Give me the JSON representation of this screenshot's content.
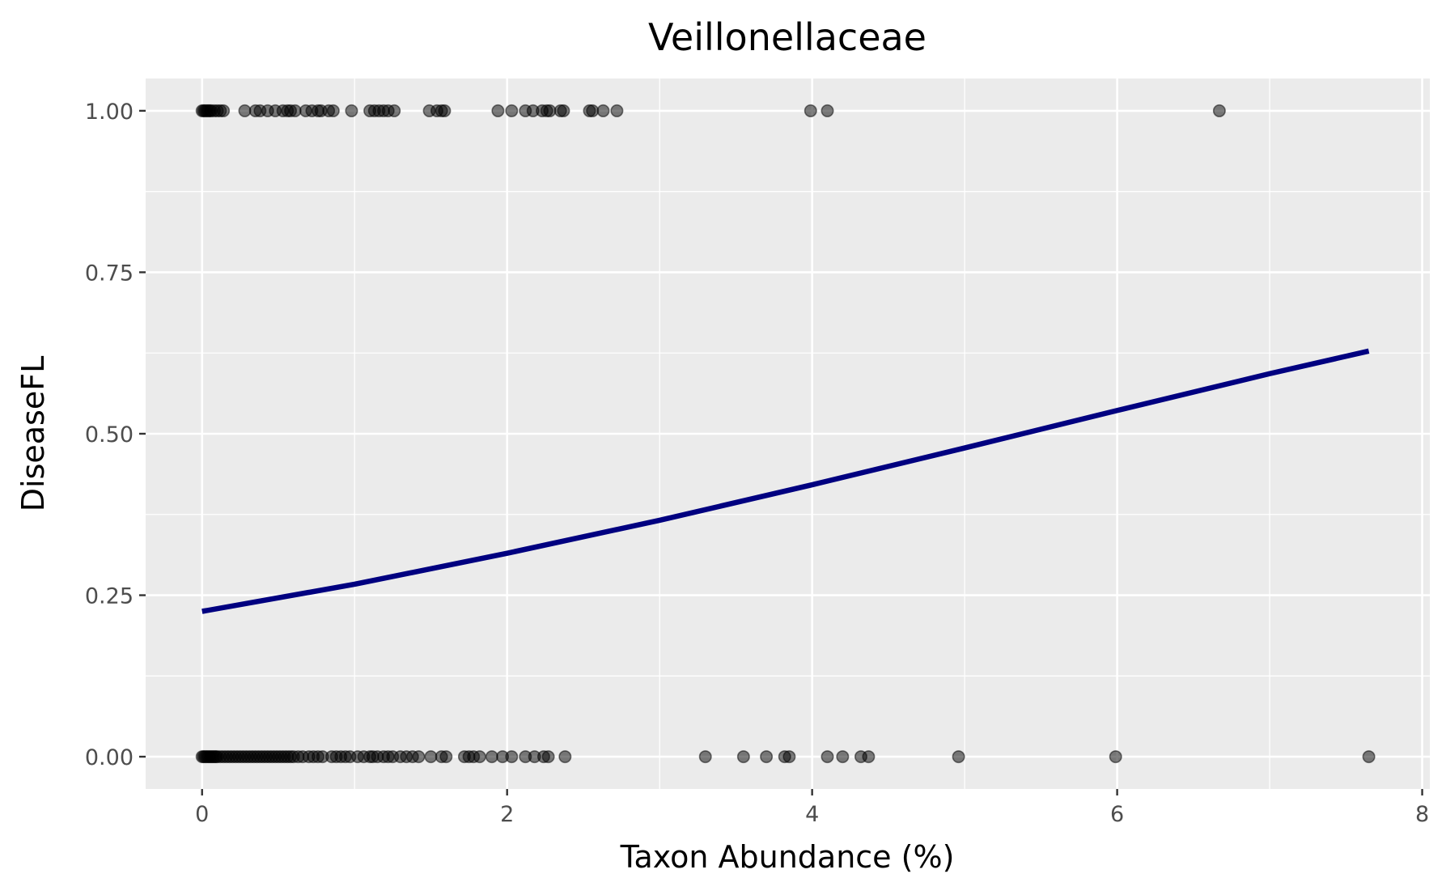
{
  "chart_data": {
    "type": "scatter",
    "title": "Veillonellaceae",
    "xlabel": "Taxon Abundance (%)",
    "ylabel": "DiseaseFL",
    "xlim": [
      -0.37,
      8.05
    ],
    "ylim": [
      -0.05,
      1.05
    ],
    "x_ticks": [
      0,
      2,
      4,
      6,
      8
    ],
    "x_tick_labels": [
      "0",
      "2",
      "4",
      "6",
      "8"
    ],
    "y_ticks": [
      0,
      0.25,
      0.5,
      0.75,
      1
    ],
    "y_tick_labels": [
      "0.00",
      "0.25",
      "0.50",
      "0.75",
      "1.00"
    ],
    "grid": true,
    "background_color": "#EBEBEB",
    "grid_color": "#FFFFFF",
    "point_color": "#000000",
    "point_opacity": 0.5,
    "line_color": "#000080",
    "series": [
      {
        "type": "scatter",
        "points": [
          {
            "x": 0.0,
            "y": 1
          },
          {
            "x": 0.01,
            "y": 1
          },
          {
            "x": 0.02,
            "y": 1
          },
          {
            "x": 0.03,
            "y": 1
          },
          {
            "x": 0.04,
            "y": 1
          },
          {
            "x": 0.05,
            "y": 1
          },
          {
            "x": 0.06,
            "y": 1
          },
          {
            "x": 0.08,
            "y": 1
          },
          {
            "x": 0.1,
            "y": 1
          },
          {
            "x": 0.12,
            "y": 1
          },
          {
            "x": 0.14,
            "y": 1
          },
          {
            "x": 0.28,
            "y": 1
          },
          {
            "x": 0.35,
            "y": 1
          },
          {
            "x": 0.38,
            "y": 1
          },
          {
            "x": 0.43,
            "y": 1
          },
          {
            "x": 0.48,
            "y": 1
          },
          {
            "x": 0.53,
            "y": 1
          },
          {
            "x": 0.56,
            "y": 1
          },
          {
            "x": 0.58,
            "y": 1
          },
          {
            "x": 0.61,
            "y": 1
          },
          {
            "x": 0.68,
            "y": 1
          },
          {
            "x": 0.72,
            "y": 1
          },
          {
            "x": 0.76,
            "y": 1
          },
          {
            "x": 0.78,
            "y": 1
          },
          {
            "x": 0.83,
            "y": 1
          },
          {
            "x": 0.86,
            "y": 1
          },
          {
            "x": 0.98,
            "y": 1
          },
          {
            "x": 1.1,
            "y": 1
          },
          {
            "x": 1.13,
            "y": 1
          },
          {
            "x": 1.16,
            "y": 1
          },
          {
            "x": 1.19,
            "y": 1
          },
          {
            "x": 1.22,
            "y": 1
          },
          {
            "x": 1.26,
            "y": 1
          },
          {
            "x": 1.49,
            "y": 1
          },
          {
            "x": 1.54,
            "y": 1
          },
          {
            "x": 1.57,
            "y": 1
          },
          {
            "x": 1.59,
            "y": 1
          },
          {
            "x": 1.94,
            "y": 1
          },
          {
            "x": 2.03,
            "y": 1
          },
          {
            "x": 2.12,
            "y": 1
          },
          {
            "x": 2.17,
            "y": 1
          },
          {
            "x": 2.23,
            "y": 1
          },
          {
            "x": 2.26,
            "y": 1
          },
          {
            "x": 2.28,
            "y": 1
          },
          {
            "x": 2.35,
            "y": 1
          },
          {
            "x": 2.37,
            "y": 1
          },
          {
            "x": 2.54,
            "y": 1
          },
          {
            "x": 2.56,
            "y": 1
          },
          {
            "x": 2.63,
            "y": 1
          },
          {
            "x": 2.72,
            "y": 1
          },
          {
            "x": 3.99,
            "y": 1
          },
          {
            "x": 4.1,
            "y": 1
          },
          {
            "x": 6.67,
            "y": 1
          },
          {
            "x": 0.0,
            "y": 0
          },
          {
            "x": 0.01,
            "y": 0
          },
          {
            "x": 0.02,
            "y": 0
          },
          {
            "x": 0.03,
            "y": 0
          },
          {
            "x": 0.04,
            "y": 0
          },
          {
            "x": 0.05,
            "y": 0
          },
          {
            "x": 0.06,
            "y": 0
          },
          {
            "x": 0.07,
            "y": 0
          },
          {
            "x": 0.08,
            "y": 0
          },
          {
            "x": 0.09,
            "y": 0
          },
          {
            "x": 0.1,
            "y": 0
          },
          {
            "x": 0.12,
            "y": 0
          },
          {
            "x": 0.14,
            "y": 0
          },
          {
            "x": 0.16,
            "y": 0
          },
          {
            "x": 0.18,
            "y": 0
          },
          {
            "x": 0.2,
            "y": 0
          },
          {
            "x": 0.22,
            "y": 0
          },
          {
            "x": 0.24,
            "y": 0
          },
          {
            "x": 0.26,
            "y": 0
          },
          {
            "x": 0.28,
            "y": 0
          },
          {
            "x": 0.3,
            "y": 0
          },
          {
            "x": 0.32,
            "y": 0
          },
          {
            "x": 0.34,
            "y": 0
          },
          {
            "x": 0.36,
            "y": 0
          },
          {
            "x": 0.38,
            "y": 0
          },
          {
            "x": 0.4,
            "y": 0
          },
          {
            "x": 0.42,
            "y": 0
          },
          {
            "x": 0.44,
            "y": 0
          },
          {
            "x": 0.46,
            "y": 0
          },
          {
            "x": 0.48,
            "y": 0
          },
          {
            "x": 0.5,
            "y": 0
          },
          {
            "x": 0.52,
            "y": 0
          },
          {
            "x": 0.54,
            "y": 0
          },
          {
            "x": 0.56,
            "y": 0
          },
          {
            "x": 0.58,
            "y": 0
          },
          {
            "x": 0.6,
            "y": 0
          },
          {
            "x": 0.63,
            "y": 0
          },
          {
            "x": 0.66,
            "y": 0
          },
          {
            "x": 0.7,
            "y": 0
          },
          {
            "x": 0.73,
            "y": 0
          },
          {
            "x": 0.76,
            "y": 0
          },
          {
            "x": 0.79,
            "y": 0
          },
          {
            "x": 0.85,
            "y": 0
          },
          {
            "x": 0.88,
            "y": 0
          },
          {
            "x": 0.91,
            "y": 0
          },
          {
            "x": 0.94,
            "y": 0
          },
          {
            "x": 0.97,
            "y": 0
          },
          {
            "x": 1.02,
            "y": 0
          },
          {
            "x": 1.06,
            "y": 0
          },
          {
            "x": 1.1,
            "y": 0
          },
          {
            "x": 1.12,
            "y": 0
          },
          {
            "x": 1.15,
            "y": 0
          },
          {
            "x": 1.19,
            "y": 0
          },
          {
            "x": 1.22,
            "y": 0
          },
          {
            "x": 1.25,
            "y": 0
          },
          {
            "x": 1.3,
            "y": 0
          },
          {
            "x": 1.34,
            "y": 0
          },
          {
            "x": 1.38,
            "y": 0
          },
          {
            "x": 1.42,
            "y": 0
          },
          {
            "x": 1.5,
            "y": 0
          },
          {
            "x": 1.57,
            "y": 0
          },
          {
            "x": 1.6,
            "y": 0
          },
          {
            "x": 1.72,
            "y": 0
          },
          {
            "x": 1.75,
            "y": 0
          },
          {
            "x": 1.78,
            "y": 0
          },
          {
            "x": 1.82,
            "y": 0
          },
          {
            "x": 1.9,
            "y": 0
          },
          {
            "x": 1.97,
            "y": 0
          },
          {
            "x": 2.03,
            "y": 0
          },
          {
            "x": 2.12,
            "y": 0
          },
          {
            "x": 2.18,
            "y": 0
          },
          {
            "x": 2.24,
            "y": 0
          },
          {
            "x": 2.27,
            "y": 0
          },
          {
            "x": 2.38,
            "y": 0
          },
          {
            "x": 3.3,
            "y": 0
          },
          {
            "x": 3.55,
            "y": 0
          },
          {
            "x": 3.7,
            "y": 0
          },
          {
            "x": 3.82,
            "y": 0
          },
          {
            "x": 3.85,
            "y": 0
          },
          {
            "x": 4.1,
            "y": 0
          },
          {
            "x": 4.2,
            "y": 0
          },
          {
            "x": 4.32,
            "y": 0
          },
          {
            "x": 4.37,
            "y": 0
          },
          {
            "x": 4.96,
            "y": 0
          },
          {
            "x": 5.99,
            "y": 0
          },
          {
            "x": 7.65,
            "y": 0
          }
        ]
      },
      {
        "type": "line",
        "points": [
          {
            "x": 0.0,
            "y": 0.225
          },
          {
            "x": 1.0,
            "y": 0.267
          },
          {
            "x": 2.0,
            "y": 0.315
          },
          {
            "x": 3.0,
            "y": 0.366
          },
          {
            "x": 4.0,
            "y": 0.421
          },
          {
            "x": 5.0,
            "y": 0.478
          },
          {
            "x": 6.0,
            "y": 0.536
          },
          {
            "x": 7.0,
            "y": 0.593
          },
          {
            "x": 7.65,
            "y": 0.628
          }
        ]
      }
    ]
  }
}
